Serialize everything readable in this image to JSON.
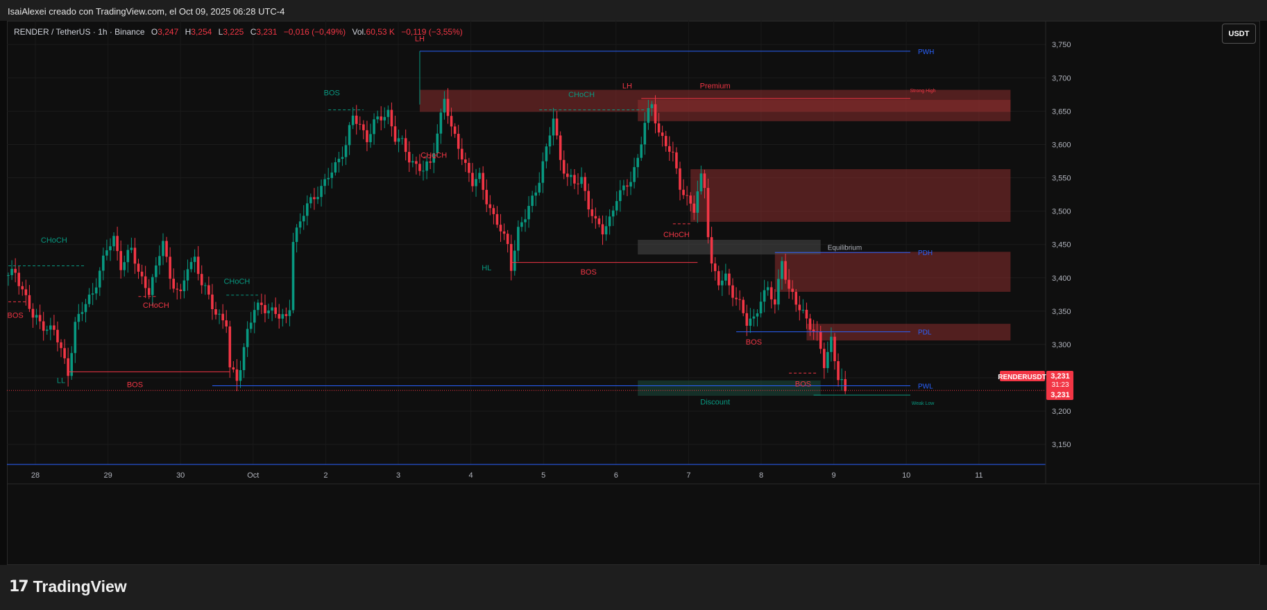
{
  "header": {
    "credit": "IsaiAlexei creado con TradingView.com, el Oct 09, 2025 06:28 UTC-4"
  },
  "legend": {
    "symbol": "RENDER / TetherUS · 1h · Binance",
    "open_label": "O",
    "open_value": "3,247",
    "high_label": "H",
    "high_value": "3,254",
    "low_label": "L",
    "low_value": "3,225",
    "close_label": "C",
    "close_value": "3,231",
    "change": "−0,016 (−0,49%)",
    "vol_label": "Vol.",
    "vol_value": "60,53 K",
    "vol_change": "−0,119 (−3,55%)"
  },
  "currency_button": "USDT",
  "footer": {
    "logo_text": "TradingView",
    "logo_mark": "17"
  },
  "colors": {
    "up": "#089981",
    "down": "#f23645",
    "blue": "#2962ff",
    "zone_red": "#8b2e2e",
    "zone_gray": "#4a4a4a",
    "zone_green": "#1b4d3e",
    "price_tag": "#f23645"
  },
  "chart_data": {
    "type": "candlestick",
    "symbol": "RENDERUSDT",
    "interval": "1h",
    "ylim": [
      3.12,
      3.77
    ],
    "y_ticks": [
      "3,750",
      "3,700",
      "3,650",
      "3,600",
      "3,550",
      "3,500",
      "3,450",
      "3,400",
      "3,350",
      "3,300",
      "3,250",
      "3,200",
      "3,150"
    ],
    "x_ticks": [
      "28",
      "29",
      "30",
      "Oct",
      "2",
      "3",
      "4",
      "5",
      "6",
      "7",
      "8",
      "9",
      "10",
      "11"
    ],
    "last_price": {
      "label": "RENDERUSDT",
      "price": "3,231",
      "countdown": "31:23",
      "price2": "3,231"
    },
    "path_anchors": [
      [
        0,
        3.4
      ],
      [
        2,
        3.41
      ],
      [
        5,
        3.37
      ],
      [
        7,
        3.34
      ],
      [
        10,
        3.33
      ],
      [
        13,
        3.32
      ],
      [
        15,
        3.29
      ],
      [
        17,
        3.26
      ],
      [
        19,
        3.33
      ],
      [
        21,
        3.35
      ],
      [
        24,
        3.38
      ],
      [
        26,
        3.41
      ],
      [
        28,
        3.44
      ],
      [
        30,
        3.46
      ],
      [
        32,
        3.42
      ],
      [
        35,
        3.44
      ],
      [
        37,
        3.41
      ],
      [
        40,
        3.38
      ],
      [
        42,
        3.41
      ],
      [
        44,
        3.46
      ],
      [
        46,
        3.4
      ],
      [
        49,
        3.37
      ],
      [
        51,
        3.42
      ],
      [
        53,
        3.43
      ],
      [
        55,
        3.39
      ],
      [
        57,
        3.37
      ],
      [
        59,
        3.35
      ],
      [
        62,
        3.33
      ],
      [
        63,
        3.26
      ],
      [
        65,
        3.25
      ],
      [
        66,
        3.27
      ],
      [
        68,
        3.32
      ],
      [
        70,
        3.35
      ],
      [
        72,
        3.36
      ],
      [
        75,
        3.35
      ],
      [
        77,
        3.34
      ],
      [
        79,
        3.34
      ],
      [
        80,
        3.36
      ],
      [
        81,
        3.46
      ],
      [
        83,
        3.48
      ],
      [
        85,
        3.51
      ],
      [
        88,
        3.53
      ],
      [
        90,
        3.54
      ],
      [
        92,
        3.56
      ],
      [
        94,
        3.58
      ],
      [
        96,
        3.6
      ],
      [
        98,
        3.64
      ],
      [
        100,
        3.63
      ],
      [
        102,
        3.61
      ],
      [
        104,
        3.63
      ],
      [
        106,
        3.64
      ],
      [
        108,
        3.65
      ],
      [
        110,
        3.61
      ],
      [
        112,
        3.6
      ],
      [
        114,
        3.58
      ],
      [
        116,
        3.57
      ],
      [
        118,
        3.56
      ],
      [
        120,
        3.57
      ],
      [
        122,
        3.62
      ],
      [
        124,
        3.67
      ],
      [
        126,
        3.62
      ],
      [
        128,
        3.6
      ],
      [
        130,
        3.57
      ],
      [
        132,
        3.54
      ],
      [
        134,
        3.55
      ],
      [
        136,
        3.52
      ],
      [
        138,
        3.49
      ],
      [
        140,
        3.47
      ],
      [
        142,
        3.45
      ],
      [
        143,
        3.42
      ],
      [
        145,
        3.47
      ],
      [
        147,
        3.49
      ],
      [
        149,
        3.52
      ],
      [
        151,
        3.55
      ],
      [
        153,
        3.59
      ],
      [
        155,
        3.64
      ],
      [
        157,
        3.58
      ],
      [
        159,
        3.55
      ],
      [
        161,
        3.54
      ],
      [
        163,
        3.55
      ],
      [
        165,
        3.51
      ],
      [
        167,
        3.48
      ],
      [
        169,
        3.47
      ],
      [
        171,
        3.49
      ],
      [
        173,
        3.52
      ],
      [
        175,
        3.53
      ],
      [
        177,
        3.55
      ],
      [
        179,
        3.58
      ],
      [
        181,
        3.63
      ],
      [
        183,
        3.66
      ],
      [
        185,
        3.62
      ],
      [
        187,
        3.6
      ],
      [
        189,
        3.58
      ],
      [
        191,
        3.54
      ],
      [
        193,
        3.52
      ],
      [
        195,
        3.5
      ],
      [
        197,
        3.55
      ],
      [
        198,
        3.54
      ],
      [
        199,
        3.47
      ],
      [
        200,
        3.42
      ],
      [
        202,
        3.39
      ],
      [
        204,
        3.4
      ],
      [
        206,
        3.38
      ],
      [
        208,
        3.36
      ],
      [
        210,
        3.33
      ],
      [
        212,
        3.34
      ],
      [
        214,
        3.37
      ],
      [
        216,
        3.38
      ],
      [
        218,
        3.36
      ],
      [
        220,
        3.43
      ],
      [
        222,
        3.38
      ],
      [
        224,
        3.36
      ],
      [
        226,
        3.35
      ],
      [
        228,
        3.33
      ],
      [
        230,
        3.31
      ],
      [
        232,
        3.27
      ],
      [
        233,
        3.29
      ],
      [
        234,
        3.31
      ],
      [
        236,
        3.25
      ],
      [
        238,
        3.23
      ]
    ],
    "structure_lines": [
      {
        "from": [
          0,
          3.418
        ],
        "to": [
          22,
          3.418
        ],
        "style": "dashed",
        "color": "up"
      },
      {
        "from": [
          0,
          3.364
        ],
        "to": [
          5,
          3.364
        ],
        "style": "dashed",
        "color": "down"
      },
      {
        "from": [
          17,
          3.259
        ],
        "to": [
          63,
          3.259
        ],
        "style": "solid",
        "color": "down"
      },
      {
        "from": [
          37,
          3.372
        ],
        "to": [
          42,
          3.372
        ],
        "style": "dashed",
        "color": "down"
      },
      {
        "from": [
          62,
          3.374
        ],
        "to": [
          71,
          3.374
        ],
        "style": "dashed",
        "color": "up"
      },
      {
        "from": [
          91,
          3.652
        ],
        "to": [
          101,
          3.652
        ],
        "style": "dashed",
        "color": "up"
      },
      {
        "from": [
          118,
          3.58
        ],
        "to": [
          122,
          3.58
        ],
        "style": "dashed",
        "color": "down"
      },
      {
        "from": [
          143,
          3.423
        ],
        "to": [
          196,
          3.423
        ],
        "style": "solid",
        "color": "down"
      },
      {
        "from": [
          151,
          3.652
        ],
        "to": [
          181,
          3.652
        ],
        "style": "dashed",
        "color": "up"
      },
      {
        "from": [
          189,
          3.481
        ],
        "to": [
          194,
          3.481
        ],
        "style": "dashed",
        "color": "down"
      },
      {
        "from": [
          222,
          3.257
        ],
        "to": [
          230,
          3.257
        ],
        "style": "dashed",
        "color": "down"
      }
    ],
    "levels": [
      {
        "label": "PWH",
        "price": 3.74,
        "from": 117,
        "color": "blue"
      },
      {
        "label": "PDH",
        "price": 3.438,
        "from": 218,
        "color": "blue"
      },
      {
        "label": "PDL",
        "price": 3.319,
        "from": 207,
        "color": "blue"
      },
      {
        "label": "PWL",
        "price": 3.238,
        "from": 58,
        "color": "blue"
      },
      {
        "label": "Strong High",
        "price": 3.669,
        "from": 180,
        "color": "down"
      },
      {
        "label": "Weak Low",
        "price": 3.224,
        "from": 229,
        "color": "up"
      }
    ],
    "zones": [
      {
        "label": "",
        "from": 117,
        "to": 285,
        "top": 3.682,
        "bottom": 3.649,
        "color": "zone_red"
      },
      {
        "label": "",
        "from": 179,
        "to": 285,
        "top": 3.667,
        "bottom": 3.635,
        "color": "zone_red"
      },
      {
        "label": "",
        "from": 194,
        "to": 285,
        "top": 3.563,
        "bottom": 3.484,
        "color": "zone_red"
      },
      {
        "label": "",
        "from": 218,
        "to": 285,
        "top": 3.439,
        "bottom": 3.379,
        "color": "zone_red"
      },
      {
        "label": "",
        "from": 227,
        "to": 285,
        "top": 3.331,
        "bottom": 3.306,
        "color": "zone_red"
      },
      {
        "label": "Equilibrium",
        "from": 179,
        "to": 231,
        "top": 3.457,
        "bottom": 3.435,
        "color": "zone_gray"
      },
      {
        "label": "Discount",
        "from": 179,
        "to": 231,
        "top": 3.246,
        "bottom": 3.223,
        "color": "zone_green"
      }
    ],
    "structure_labels": [
      {
        "text": "BOS",
        "x": 2,
        "price": 3.34,
        "color": "down"
      },
      {
        "text": "CHoCH",
        "x": 13,
        "price": 3.453,
        "color": "up"
      },
      {
        "text": "LL",
        "x": 15,
        "price": 3.242,
        "color": "up"
      },
      {
        "text": "BOS",
        "x": 36,
        "price": 3.236,
        "color": "down"
      },
      {
        "text": "CHoCH",
        "x": 42,
        "price": 3.355,
        "color": "down"
      },
      {
        "text": "CHoCH",
        "x": 65,
        "price": 3.391,
        "color": "up"
      },
      {
        "text": "BOS",
        "x": 92,
        "price": 3.674,
        "color": "up"
      },
      {
        "text": "LH",
        "x": 117,
        "price": 3.755,
        "color": "down"
      },
      {
        "text": "CHoCH",
        "x": 121,
        "price": 3.58,
        "color": "down"
      },
      {
        "text": "HL",
        "x": 136,
        "price": 3.411,
        "color": "up"
      },
      {
        "text": "CHoCH",
        "x": 163,
        "price": 3.671,
        "color": "up"
      },
      {
        "text": "BOS",
        "x": 165,
        "price": 3.405,
        "color": "down"
      },
      {
        "text": "LH",
        "x": 176,
        "price": 3.684,
        "color": "down"
      },
      {
        "text": "Premium",
        "x": 201,
        "price": 3.684,
        "color": "down"
      },
      {
        "text": "CHoCH",
        "x": 190,
        "price": 3.461,
        "color": "down"
      },
      {
        "text": "BOS",
        "x": 212,
        "price": 3.3,
        "color": "down"
      },
      {
        "text": "BOS",
        "x": 226,
        "price": 3.237,
        "color": "down"
      },
      {
        "text": "Discount",
        "x": 201,
        "price": 3.21,
        "color": "up"
      }
    ]
  }
}
